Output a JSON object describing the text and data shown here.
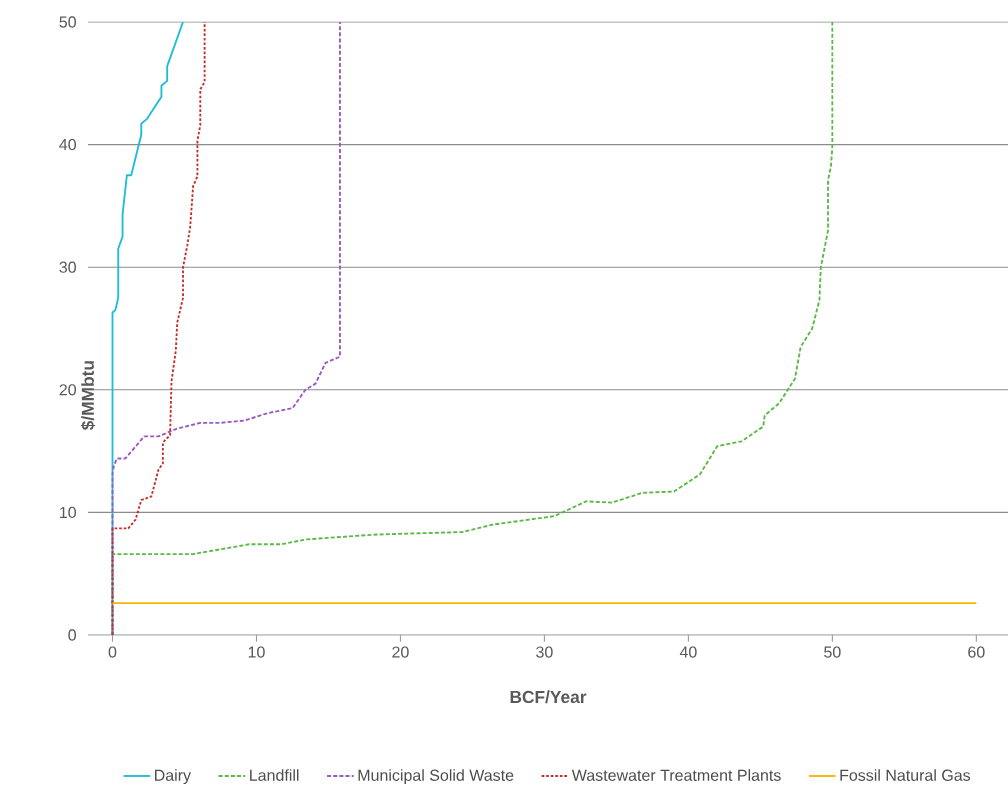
{
  "chart_data": {
    "type": "line",
    "xlabel": "BCF/Year",
    "ylabel": "$/MMbtu",
    "xlim": [
      -1.7,
      62.2
    ],
    "ylim": [
      0,
      50
    ],
    "xticks": [
      0,
      10,
      20,
      30,
      40,
      50,
      60
    ],
    "yticks": [
      0,
      10,
      20,
      30,
      40,
      50
    ],
    "grid": "y",
    "legend": "bottom",
    "marker": "none",
    "series": [
      {
        "name": "Dairy",
        "color": "#1fbcd6",
        "line_style": "solid",
        "x": [
          0,
          0,
          0.2,
          0.4,
          0.4,
          0.7,
          0.7,
          1.0,
          1.3,
          2.0,
          2.0,
          2.4,
          3.4,
          3.4,
          3.8,
          3.8,
          4.9
        ],
        "values": [
          0,
          26.3,
          26.5,
          27.5,
          31.5,
          32.5,
          34.3,
          37.5,
          37.5,
          40.8,
          41.7,
          42.1,
          43.9,
          44.8,
          45.2,
          46.4,
          50
        ]
      },
      {
        "name": "Landfill",
        "color": "#5ab946",
        "line_style": "dashed",
        "x": [
          0,
          0,
          5.6,
          9.5,
          11.7,
          13.5,
          17.1,
          18.5,
          24.3,
          26.4,
          30.7,
          32.9,
          34.7,
          36.8,
          39.0,
          40.8,
          42.0,
          43.7,
          45.2,
          45.3,
          46.3,
          47.4,
          47.8,
          48.6,
          49.1,
          49.2,
          49.7,
          49.7,
          49.9,
          50.0,
          50.0
        ],
        "values": [
          0,
          6.6,
          6.6,
          7.4,
          7.4,
          7.8,
          8.1,
          8.2,
          8.4,
          9.0,
          9.7,
          10.9,
          10.8,
          11.6,
          11.7,
          13.1,
          15.4,
          15.8,
          17.0,
          17.9,
          18.9,
          20.9,
          23.5,
          25.0,
          27.3,
          30.0,
          33.0,
          37.1,
          38.2,
          39.8,
          50
        ]
      },
      {
        "name": "Municipal Solid Waste",
        "color": "#9b59c0",
        "line_style": "dashed",
        "x": [
          0,
          0,
          0.1,
          0.3,
          0.9,
          2.2,
          3.2,
          4.4,
          6.1,
          7.5,
          9.2,
          10.5,
          11.2,
          12.5,
          13.4,
          14.1,
          14.8,
          15.8,
          15.8
        ],
        "values": [
          0,
          13.2,
          13.8,
          14.4,
          14.4,
          16.2,
          16.2,
          16.8,
          17.3,
          17.3,
          17.5,
          18.0,
          18.2,
          18.5,
          20.0,
          20.5,
          22.2,
          22.7,
          50
        ]
      },
      {
        "name": "Wastewater Treatment Plants",
        "color": "#c0302a",
        "line_style": "dotted",
        "x": [
          0,
          0,
          1.1,
          1.6,
          2.0,
          2.7,
          3.2,
          3.5,
          3.5,
          4.0,
          4.1,
          4.4,
          4.5,
          4.9,
          4.9,
          5.2,
          5.4,
          5.6,
          5.9,
          5.9,
          6.1,
          6.1,
          6.4,
          6.4
        ],
        "values": [
          0,
          8.7,
          8.7,
          9.4,
          11.0,
          11.3,
          13.5,
          14.0,
          15.7,
          16.3,
          20.7,
          23.2,
          25.5,
          27.5,
          30.0,
          31.8,
          33.3,
          36.6,
          37.4,
          40.3,
          41.6,
          44.5,
          45.1,
          50
        ]
      },
      {
        "name": "Fossil Natural Gas",
        "color": "#f6b700",
        "line_style": "solid",
        "x": [
          0,
          60
        ],
        "values": [
          2.6,
          2.6
        ]
      }
    ]
  }
}
